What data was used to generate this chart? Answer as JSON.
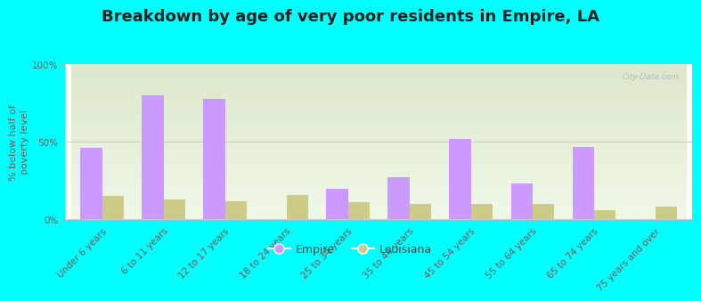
{
  "title": "Breakdown by age of very poor residents in Empire, LA",
  "ylabel": "% below half of\npoverty level",
  "categories": [
    "Under 6 years",
    "6 to 11 years",
    "12 to 17 years",
    "18 to 24 years",
    "25 to 34 years",
    "35 to 44 years",
    "45 to 54 years",
    "55 to 64 years",
    "65 to 74 years",
    "75 years and over"
  ],
  "empire_values": [
    46,
    80,
    78,
    0,
    20,
    27,
    52,
    23,
    47,
    0
  ],
  "louisiana_values": [
    15,
    13,
    12,
    16,
    11,
    10,
    10,
    10,
    6,
    8
  ],
  "empire_color": "#cc99ff",
  "louisiana_color": "#cccc88",
  "background_color": "#00ffff",
  "plot_bg_top": "#dce8cc",
  "plot_bg_bottom": "#f0f8e8",
  "ylim": [
    0,
    100
  ],
  "yticks": [
    0,
    50,
    100
  ],
  "ytick_labels": [
    "0%",
    "50%",
    "100%"
  ],
  "bar_width": 0.35,
  "legend_empire": "Empire",
  "legend_louisiana": "Louisiana",
  "title_fontsize": 13,
  "axis_label_fontsize": 8,
  "tick_fontsize": 7.5
}
